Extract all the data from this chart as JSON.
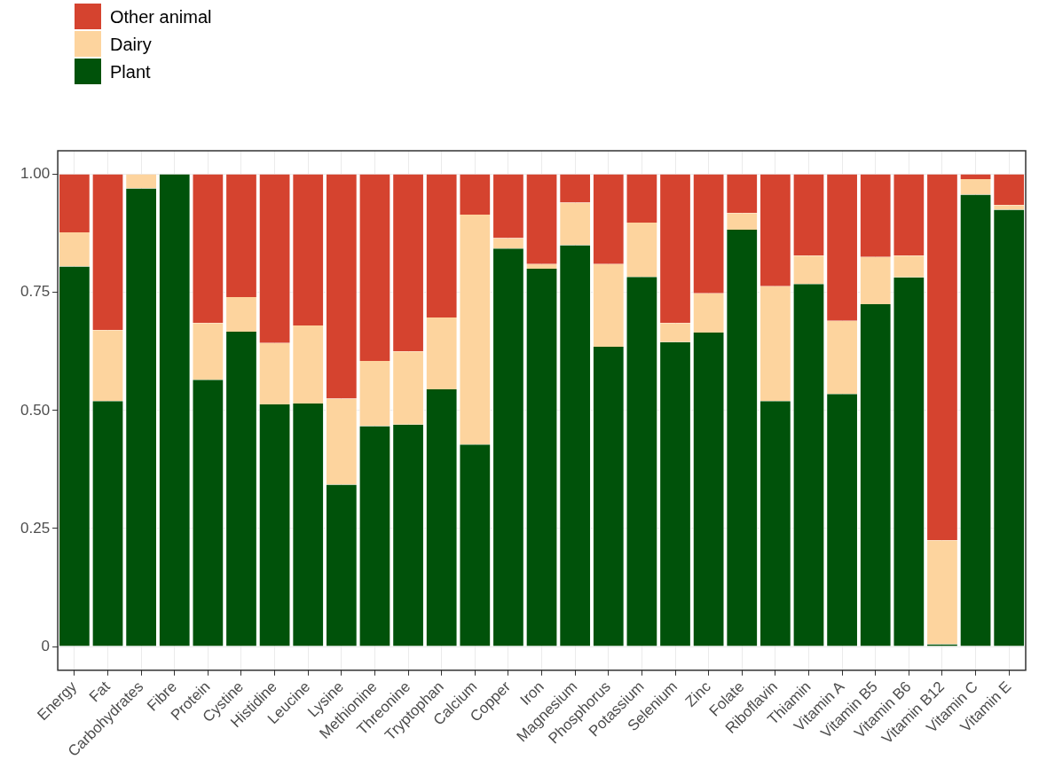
{
  "chart_data": {
    "type": "bar",
    "stacked": true,
    "legend": "top left",
    "grid": true,
    "categories": [
      "Energy",
      "Fat",
      "Carbohydrates",
      "Fibre",
      "Protein",
      "Cystine",
      "Histidine",
      "Leucine",
      "Lysine",
      "Methionine",
      "Threonine",
      "Tryptophan",
      "Calcium",
      "Copper",
      "Iron",
      "Magnesium",
      "Phosphorus",
      "Potassium",
      "Selenium",
      "Zinc",
      "Folate",
      "Riboflavin",
      "Thiamin",
      "Vitamin A",
      "Vitamin B5",
      "Vitamin B6",
      "Vitamin B12",
      "Vitamin C",
      "Vitamin E"
    ],
    "series": [
      {
        "name": "Plant",
        "color": "#00520a",
        "values": [
          0.805,
          0.52,
          0.97,
          1,
          0.565,
          0.667,
          0.513,
          0.515,
          0.343,
          0.467,
          0.47,
          0.545,
          0.428,
          0.843,
          0.8,
          0.85,
          0.635,
          0.783,
          0.645,
          0.665,
          0.883,
          0.52,
          0.768,
          0.535,
          0.725,
          0.782,
          0.005,
          0.957,
          0.925
        ]
      },
      {
        "name": "Dairy",
        "color": "#fdd49e",
        "values": [
          0.072,
          0.15,
          0.03,
          0,
          0.12,
          0.073,
          0.13,
          0.165,
          0.182,
          0.138,
          0.155,
          0.152,
          0.487,
          0.022,
          0.01,
          0.09,
          0.175,
          0.115,
          0.04,
          0.083,
          0.035,
          0.243,
          0.06,
          0.155,
          0.1,
          0.046,
          0.22,
          0.033,
          0.01
        ]
      },
      {
        "name": "Other animal",
        "color": "#d5432f",
        "values": [
          0.123,
          0.33,
          0,
          0,
          0.315,
          0.26,
          0.357,
          0.32,
          0.475,
          0.395,
          0.375,
          0.303,
          0.085,
          0.135,
          0.19,
          0.06,
          0.19,
          0.102,
          0.315,
          0.252,
          0.082,
          0.237,
          0.172,
          0.31,
          0.175,
          0.172,
          0.775,
          0.01,
          0.065
        ]
      }
    ],
    "ylim": [
      -0.05,
      1.05
    ],
    "yticks": [
      0,
      {
        "value": 0.25,
        "label": "0.25"
      },
      {
        "value": 0.5,
        "label": "0.50"
      },
      {
        "value": 0.75,
        "label": "0.75"
      },
      {
        "value": 1,
        "label": "1.00"
      }
    ]
  }
}
